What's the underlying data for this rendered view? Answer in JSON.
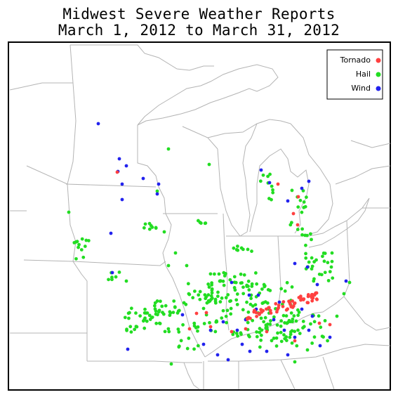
{
  "title": "Midwest Severe Weather Reports",
  "subtitle": "March 1, 2012 to March 31, 2012",
  "colors": {
    "tornado": "#ff4040",
    "hail": "#22dd22",
    "wind": "#2222ee",
    "borders": "#b4b4b4",
    "frame": "#000000"
  },
  "legend": [
    {
      "label": "Tornado",
      "key": "tornado"
    },
    {
      "label": "Hail",
      "key": "hail"
    },
    {
      "label": "Wind",
      "key": "wind"
    }
  ]
}
